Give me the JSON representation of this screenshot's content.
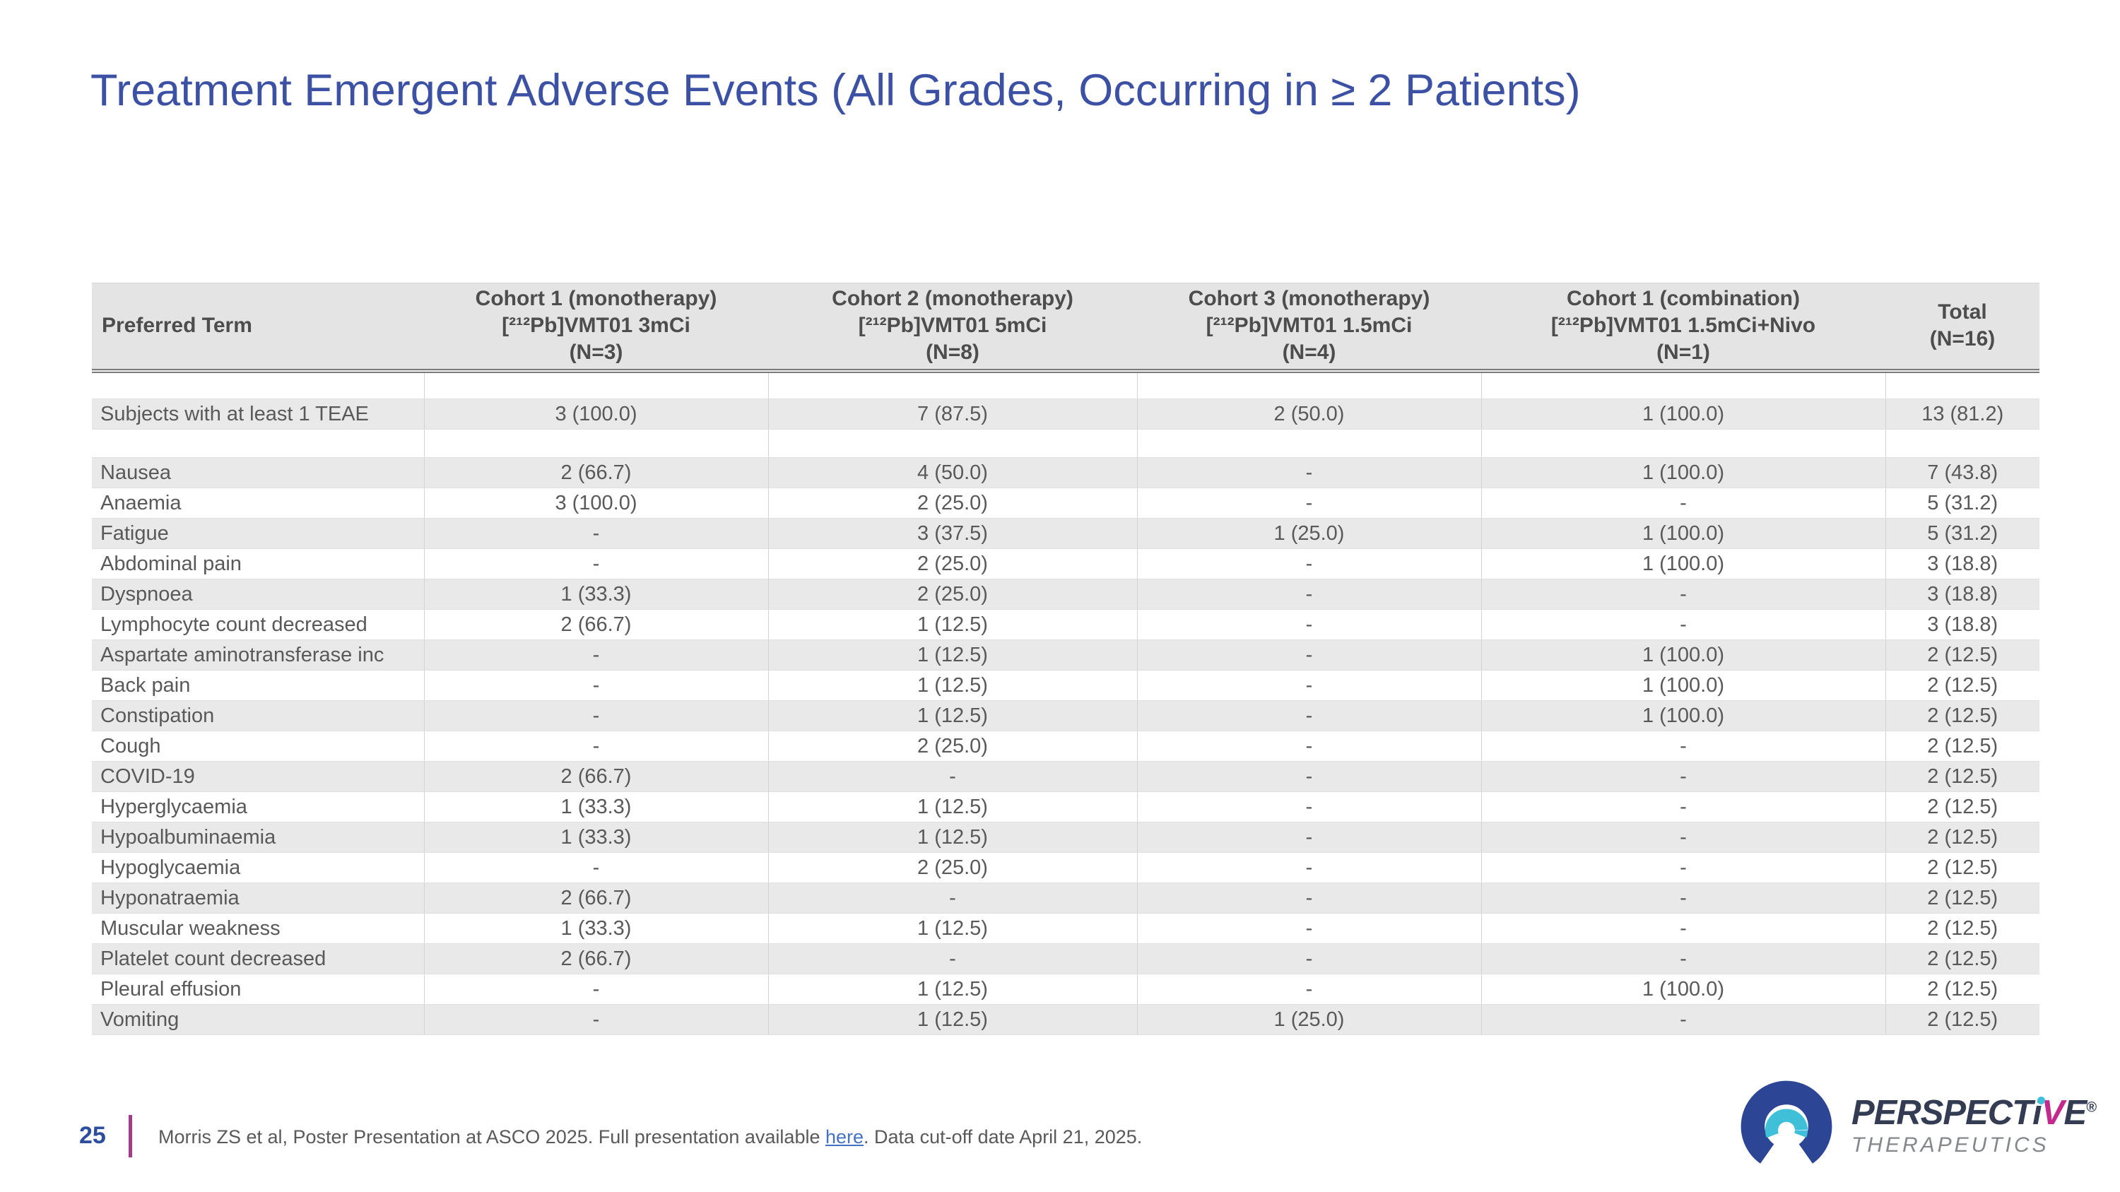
{
  "title": "Treatment Emergent Adverse Events (All Grades, Occurring in ≥ 2 Patients)",
  "table": {
    "header": {
      "preferred_term": "Preferred Term",
      "cohort_columns": [
        {
          "lines": [
            "Cohort 1 (monotherapy)",
            "[²¹²Pb]VMT01 3mCi",
            "(N=3)"
          ]
        },
        {
          "lines": [
            "Cohort 2 (monotherapy)",
            "[²¹²Pb]VMT01 5mCi",
            "(N=8)"
          ]
        },
        {
          "lines": [
            "Cohort 3 (monotherapy)",
            "[²¹²Pb]VMT01 1.5mCi",
            "(N=4)"
          ]
        },
        {
          "lines": [
            "Cohort 1 (combination)",
            "[²¹²Pb]VMT01 1.5mCi+Nivo",
            "(N=1)"
          ]
        },
        {
          "lines": [
            "Total",
            "(N=16)"
          ]
        }
      ]
    },
    "rows": [
      {
        "term": "",
        "values": [
          "",
          "",
          "",
          "",
          ""
        ]
      },
      {
        "term": "Subjects with at least 1 TEAE",
        "values": [
          "3 (100.0)",
          "7 (87.5)",
          "2 (50.0)",
          "1 (100.0)",
          "13 (81.2)"
        ]
      },
      {
        "term": "",
        "values": [
          "",
          "",
          "",
          "",
          ""
        ]
      },
      {
        "term": "Nausea",
        "values": [
          "2 (66.7)",
          "4 (50.0)",
          "-",
          "1 (100.0)",
          "7 (43.8)"
        ]
      },
      {
        "term": "Anaemia",
        "values": [
          "3 (100.0)",
          "2 (25.0)",
          "-",
          "-",
          "5 (31.2)"
        ]
      },
      {
        "term": "Fatigue",
        "values": [
          "-",
          "3 (37.5)",
          "1 (25.0)",
          "1 (100.0)",
          "5 (31.2)"
        ]
      },
      {
        "term": "Abdominal pain",
        "values": [
          "-",
          "2 (25.0)",
          "-",
          "1 (100.0)",
          "3 (18.8)"
        ]
      },
      {
        "term": "Dyspnoea",
        "values": [
          "1 (33.3)",
          "2 (25.0)",
          "-",
          "-",
          "3 (18.8)"
        ]
      },
      {
        "term": "Lymphocyte count decreased",
        "values": [
          "2 (66.7)",
          "1 (12.5)",
          "-",
          "-",
          "3 (18.8)"
        ]
      },
      {
        "term": "Aspartate aminotransferase inc",
        "values": [
          "-",
          "1 (12.5)",
          "-",
          "1 (100.0)",
          "2 (12.5)"
        ]
      },
      {
        "term": "Back pain",
        "values": [
          "-",
          "1 (12.5)",
          "-",
          "1 (100.0)",
          "2 (12.5)"
        ]
      },
      {
        "term": "Constipation",
        "values": [
          "-",
          "1 (12.5)",
          "-",
          "1 (100.0)",
          "2 (12.5)"
        ]
      },
      {
        "term": "Cough",
        "values": [
          "-",
          "2 (25.0)",
          "-",
          "-",
          "2 (12.5)"
        ]
      },
      {
        "term": "COVID-19",
        "values": [
          "2 (66.7)",
          "-",
          "-",
          "-",
          "2 (12.5)"
        ]
      },
      {
        "term": "Hyperglycaemia",
        "values": [
          "1 (33.3)",
          "1 (12.5)",
          "-",
          "-",
          "2 (12.5)"
        ]
      },
      {
        "term": "Hypoalbuminaemia",
        "values": [
          "1 (33.3)",
          "1 (12.5)",
          "-",
          "-",
          "2 (12.5)"
        ]
      },
      {
        "term": "Hypoglycaemia",
        "values": [
          "-",
          "2 (25.0)",
          "-",
          "-",
          "2 (12.5)"
        ]
      },
      {
        "term": "Hyponatraemia",
        "values": [
          "2 (66.7)",
          "-",
          "-",
          "-",
          "2 (12.5)"
        ]
      },
      {
        "term": "Muscular weakness",
        "values": [
          "1 (33.3)",
          "1 (12.5)",
          "-",
          "-",
          "2 (12.5)"
        ]
      },
      {
        "term": "Platelet count decreased",
        "values": [
          "2 (66.7)",
          "-",
          "-",
          "-",
          "2 (12.5)"
        ]
      },
      {
        "term": "Pleural effusion",
        "values": [
          "-",
          "1 (12.5)",
          "-",
          "1 (100.0)",
          "2 (12.5)"
        ]
      },
      {
        "term": "Vomiting",
        "values": [
          "-",
          "1 (12.5)",
          "1 (25.0)",
          "-",
          "2 (12.5)"
        ]
      }
    ]
  },
  "footer": {
    "page_number": "25",
    "citation_before_link": "Morris ZS et al, Poster Presentation at ASCO 2025. Full presentation available ",
    "link_label": "here",
    "citation_after_link": ". Data cut-off date April 21, 2025."
  },
  "logo": {
    "wordmark_pre": "PERSPECT",
    "wordmark_i": "i",
    "wordmark_v": "V",
    "wordmark_end": "E",
    "reg_mark": "®",
    "subline": "THERAPEUTICS",
    "colors": {
      "arc_outer": "#2d4595",
      "arc_inner": "#3fc0d8",
      "wordmark_dark": "#333c52",
      "wordmark_magenta": "#c4298d",
      "subline_gray": "#85888b"
    }
  },
  "accent_colors": {
    "title_blue": "#3c51a3",
    "footer_bar_magenta": "#a23a8e",
    "page_number_blue": "#2d4d9d",
    "link_blue": "#4472c4",
    "stripe_gray": "#e9e9e9",
    "header_gray": "#e4e4e4"
  }
}
